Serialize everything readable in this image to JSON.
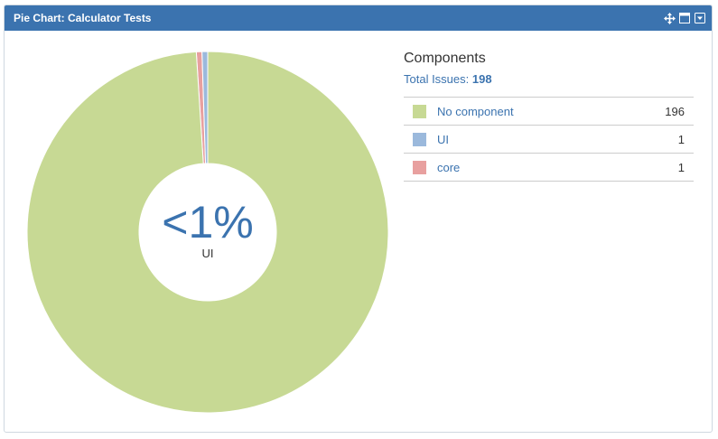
{
  "gadget": {
    "title": "Pie Chart: Calculator Tests",
    "icons": [
      "move-icon",
      "maximize-icon",
      "menu-dropdown-icon"
    ]
  },
  "center": {
    "percent": "<1%",
    "label": "UI"
  },
  "legend": {
    "title": "Components",
    "total_label": "Total Issues:",
    "total_value": "198",
    "rows": [
      {
        "name": "No component",
        "count": "196",
        "color": "#c7d994"
      },
      {
        "name": "UI",
        "count": "1",
        "color": "#9bb9dc"
      },
      {
        "name": "core",
        "count": "1",
        "color": "#e8a09f"
      }
    ]
  },
  "chart_data": {
    "type": "pie",
    "categories": [
      "No component",
      "UI",
      "core"
    ],
    "values": [
      196,
      1,
      1
    ],
    "colors": [
      "#c7d994",
      "#9bb9dc",
      "#e8a09f"
    ],
    "donut": true,
    "highlighted": "UI"
  }
}
